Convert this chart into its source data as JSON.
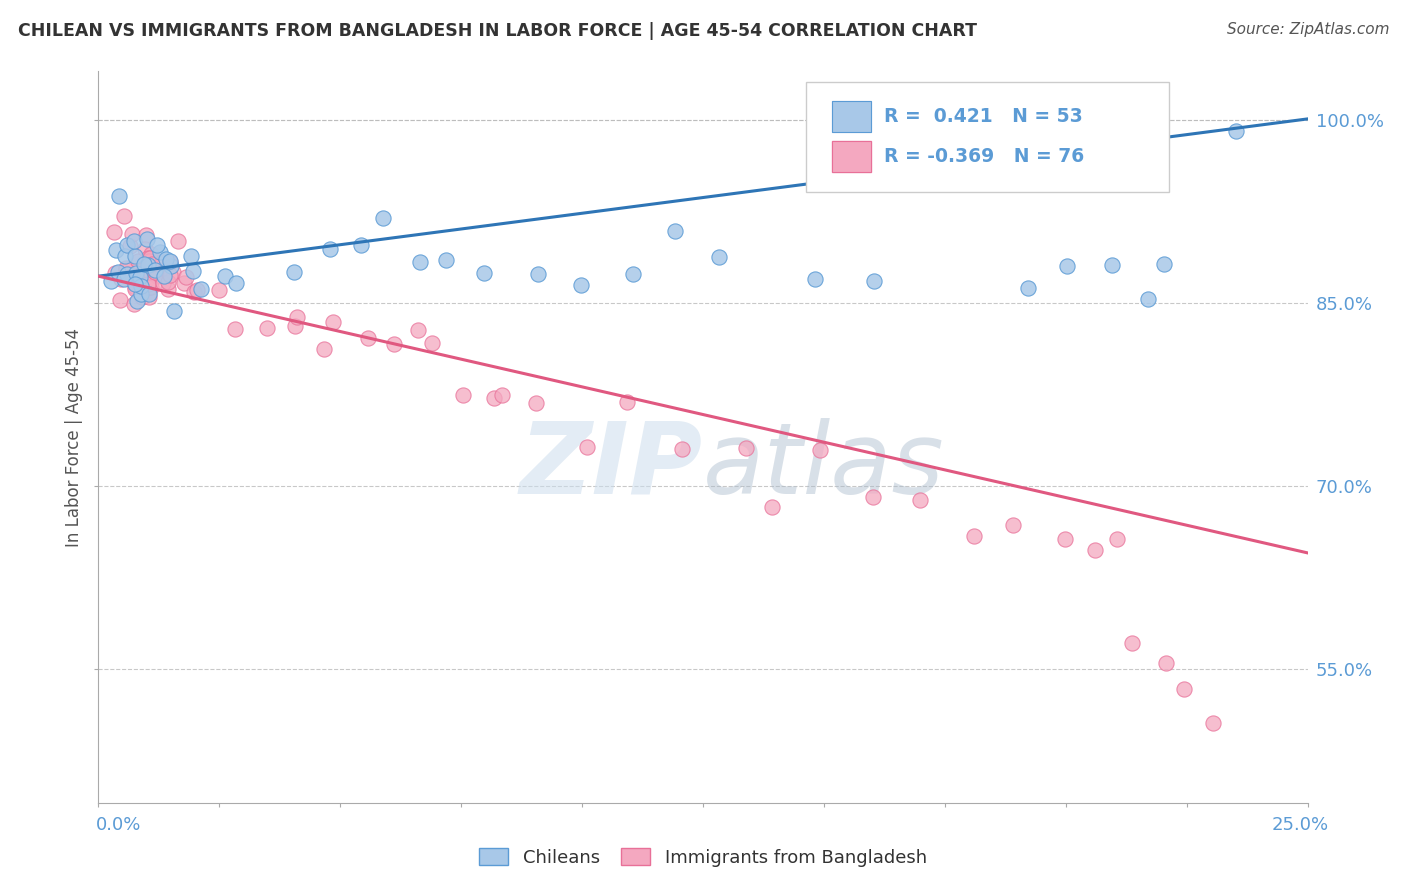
{
  "title": "CHILEAN VS IMMIGRANTS FROM BANGLADESH IN LABOR FORCE | AGE 45-54 CORRELATION CHART",
  "source": "Source: ZipAtlas.com",
  "ylabel": "In Labor Force | Age 45-54",
  "xmin": 0.0,
  "xmax": 0.25,
  "ymin": 0.44,
  "ymax": 1.04,
  "blue_R": 0.421,
  "blue_N": 53,
  "pink_R": -0.369,
  "pink_N": 76,
  "blue_color": "#A8C8E8",
  "pink_color": "#F4A8C0",
  "blue_edge_color": "#5B9BD5",
  "pink_edge_color": "#E87098",
  "blue_line_color": "#2E75B6",
  "pink_line_color": "#E05880",
  "legend_blue_label": "Chileans",
  "legend_pink_label": "Immigrants from Bangladesh",
  "background_color": "#FFFFFF",
  "grid_color": "#BBBBBB",
  "title_color": "#333333",
  "axis_label_color": "#5B9BD5",
  "blue_line_x": [
    0.0,
    0.25
  ],
  "blue_line_y": [
    0.872,
    1.001
  ],
  "pink_line_x": [
    0.0,
    0.25
  ],
  "pink_line_y": [
    0.872,
    0.645
  ],
  "blue_x": [
    0.002,
    0.003,
    0.004,
    0.005,
    0.005,
    0.006,
    0.006,
    0.007,
    0.007,
    0.007,
    0.008,
    0.008,
    0.008,
    0.009,
    0.009,
    0.009,
    0.01,
    0.01,
    0.01,
    0.011,
    0.011,
    0.012,
    0.012,
    0.013,
    0.014,
    0.015,
    0.016,
    0.017,
    0.018,
    0.02,
    0.022,
    0.025,
    0.03,
    0.04,
    0.05,
    0.055,
    0.06,
    0.065,
    0.07,
    0.08,
    0.09,
    0.1,
    0.11,
    0.12,
    0.13,
    0.15,
    0.16,
    0.19,
    0.2,
    0.21,
    0.215,
    0.22,
    0.235
  ],
  "blue_y": [
    0.89,
    0.87,
    0.88,
    0.91,
    0.93,
    0.875,
    0.88,
    0.875,
    0.88,
    0.89,
    0.875,
    0.88,
    0.885,
    0.875,
    0.88,
    0.87,
    0.875,
    0.88,
    0.885,
    0.88,
    0.87,
    0.875,
    0.88,
    0.875,
    0.875,
    0.875,
    0.87,
    0.875,
    0.875,
    0.87,
    0.875,
    0.875,
    0.875,
    0.88,
    0.875,
    0.875,
    0.91,
    0.875,
    0.875,
    0.875,
    0.875,
    0.875,
    0.875,
    0.875,
    0.875,
    0.875,
    0.875,
    0.875,
    0.875,
    0.875,
    0.875,
    0.875,
    1.0
  ],
  "pink_x": [
    0.002,
    0.003,
    0.004,
    0.005,
    0.005,
    0.005,
    0.006,
    0.006,
    0.007,
    0.007,
    0.007,
    0.008,
    0.008,
    0.008,
    0.008,
    0.009,
    0.009,
    0.009,
    0.009,
    0.01,
    0.01,
    0.01,
    0.01,
    0.01,
    0.011,
    0.011,
    0.011,
    0.012,
    0.012,
    0.012,
    0.013,
    0.013,
    0.013,
    0.014,
    0.014,
    0.015,
    0.015,
    0.016,
    0.016,
    0.017,
    0.018,
    0.019,
    0.02,
    0.022,
    0.025,
    0.03,
    0.035,
    0.04,
    0.04,
    0.045,
    0.05,
    0.055,
    0.06,
    0.065,
    0.07,
    0.075,
    0.08,
    0.085,
    0.09,
    0.1,
    0.11,
    0.12,
    0.135,
    0.14,
    0.15,
    0.16,
    0.17,
    0.18,
    0.19,
    0.2,
    0.205,
    0.21,
    0.215,
    0.22,
    0.225,
    0.23
  ],
  "pink_y": [
    0.87,
    0.89,
    0.875,
    0.88,
    0.89,
    0.91,
    0.875,
    0.88,
    0.875,
    0.88,
    0.89,
    0.875,
    0.88,
    0.875,
    0.89,
    0.875,
    0.88,
    0.875,
    0.88,
    0.875,
    0.88,
    0.875,
    0.88,
    0.875,
    0.88,
    0.875,
    0.87,
    0.875,
    0.88,
    0.87,
    0.875,
    0.88,
    0.875,
    0.87,
    0.875,
    0.875,
    0.87,
    0.875,
    0.87,
    0.875,
    0.87,
    0.875,
    0.875,
    0.86,
    0.85,
    0.84,
    0.83,
    0.82,
    0.84,
    0.82,
    0.82,
    0.82,
    0.81,
    0.81,
    0.8,
    0.78,
    0.78,
    0.77,
    0.77,
    0.76,
    0.75,
    0.73,
    0.72,
    0.7,
    0.71,
    0.7,
    0.69,
    0.68,
    0.67,
    0.66,
    0.65,
    0.65,
    0.57,
    0.54,
    0.54,
    0.52
  ]
}
